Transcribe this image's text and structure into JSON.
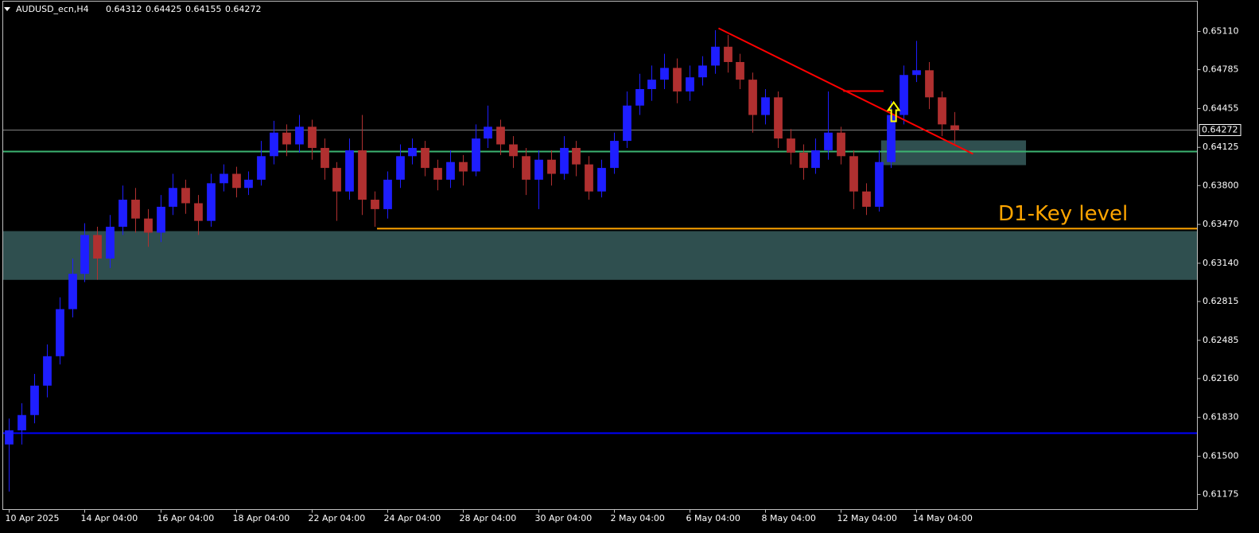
{
  "chart_data": {
    "type": "candlestick",
    "symbol": "AUDUSD_ecn,H4",
    "colors": {
      "up": "#1e1eff",
      "down": "#b03030",
      "background": "#000000",
      "axis": "#c0c0c0",
      "bid_line": "#808080"
    },
    "xlim": [
      -0.5,
      94.3
    ],
    "ylim": [
      0.61047,
      0.65367
    ],
    "yticks": [
      {
        "value": 0.6511,
        "label": "0.65110"
      },
      {
        "value": 0.64785,
        "label": "0.64785"
      },
      {
        "value": 0.64455,
        "label": "0.64455"
      },
      {
        "value": 0.64125,
        "label": "0.64125"
      },
      {
        "value": 0.638,
        "label": "0.63800"
      },
      {
        "value": 0.6347,
        "label": "0.63470"
      },
      {
        "value": 0.6314,
        "label": "0.63140"
      },
      {
        "value": 0.62815,
        "label": "0.62815"
      },
      {
        "value": 0.62485,
        "label": "0.62485"
      },
      {
        "value": 0.6216,
        "label": "0.62160"
      },
      {
        "value": 0.6183,
        "label": "0.61830"
      },
      {
        "value": 0.615,
        "label": "0.61500"
      },
      {
        "value": 0.61175,
        "label": "0.61175"
      }
    ],
    "xticks": [
      {
        "value": 0,
        "label": "10 Apr 2025"
      },
      {
        "value": 6,
        "label": "14 Apr 04:00"
      },
      {
        "value": 12,
        "label": "16 Apr 04:00"
      },
      {
        "value": 18,
        "label": "18 Apr 04:00"
      },
      {
        "value": 24,
        "label": "22 Apr 04:00"
      },
      {
        "value": 30,
        "label": "24 Apr 04:00"
      },
      {
        "value": 36,
        "label": "28 Apr 04:00"
      },
      {
        "value": 42,
        "label": "30 Apr 04:00"
      },
      {
        "value": 48,
        "label": "2 May 04:00"
      },
      {
        "value": 54,
        "label": "6 May 04:00"
      },
      {
        "value": 60,
        "label": "8 May 04:00"
      },
      {
        "value": 66,
        "label": "12 May 04:00"
      },
      {
        "value": 72,
        "label": "14 May 04:00"
      }
    ],
    "ohlc": [
      [
        0.616,
        0.6182,
        0.612,
        0.6172
      ],
      [
        0.6172,
        0.6195,
        0.616,
        0.6185
      ],
      [
        0.6185,
        0.622,
        0.6178,
        0.621
      ],
      [
        0.621,
        0.6245,
        0.62,
        0.6235
      ],
      [
        0.6235,
        0.6285,
        0.6228,
        0.6275
      ],
      [
        0.6275,
        0.6318,
        0.6268,
        0.6305
      ],
      [
        0.6305,
        0.6348,
        0.6298,
        0.6338
      ],
      [
        0.6338,
        0.6345,
        0.63,
        0.6318
      ],
      [
        0.6318,
        0.6355,
        0.631,
        0.6345
      ],
      [
        0.6345,
        0.638,
        0.6338,
        0.6368
      ],
      [
        0.6368,
        0.6378,
        0.634,
        0.6352
      ],
      [
        0.6352,
        0.636,
        0.6328,
        0.634
      ],
      [
        0.634,
        0.6372,
        0.6332,
        0.6362
      ],
      [
        0.6362,
        0.639,
        0.6355,
        0.6378
      ],
      [
        0.6378,
        0.6385,
        0.6356,
        0.6365
      ],
      [
        0.6365,
        0.6372,
        0.6338,
        0.635
      ],
      [
        0.635,
        0.639,
        0.6345,
        0.6382
      ],
      [
        0.6382,
        0.6398,
        0.6375,
        0.639
      ],
      [
        0.639,
        0.6396,
        0.637,
        0.6378
      ],
      [
        0.6378,
        0.6392,
        0.6372,
        0.6385
      ],
      [
        0.6385,
        0.6418,
        0.638,
        0.6405
      ],
      [
        0.6405,
        0.6435,
        0.6398,
        0.6425
      ],
      [
        0.6425,
        0.6432,
        0.6405,
        0.6415
      ],
      [
        0.6415,
        0.644,
        0.6408,
        0.643
      ],
      [
        0.643,
        0.6436,
        0.6402,
        0.6412
      ],
      [
        0.6412,
        0.642,
        0.6385,
        0.6395
      ],
      [
        0.6395,
        0.64,
        0.635,
        0.6375
      ],
      [
        0.6375,
        0.642,
        0.6368,
        0.641
      ],
      [
        0.641,
        0.644,
        0.6355,
        0.6368
      ],
      [
        0.6368,
        0.6375,
        0.6345,
        0.636
      ],
      [
        0.636,
        0.6392,
        0.6352,
        0.6385
      ],
      [
        0.6385,
        0.6415,
        0.6378,
        0.6405
      ],
      [
        0.6405,
        0.642,
        0.6398,
        0.6412
      ],
      [
        0.6412,
        0.6418,
        0.6388,
        0.6395
      ],
      [
        0.6395,
        0.6402,
        0.6376,
        0.6385
      ],
      [
        0.6385,
        0.641,
        0.6378,
        0.64
      ],
      [
        0.64,
        0.6406,
        0.638,
        0.6392
      ],
      [
        0.6392,
        0.6432,
        0.6388,
        0.642
      ],
      [
        0.642,
        0.6448,
        0.6412,
        0.643
      ],
      [
        0.643,
        0.6436,
        0.6406,
        0.6415
      ],
      [
        0.6415,
        0.6422,
        0.6395,
        0.6405
      ],
      [
        0.6405,
        0.6412,
        0.6372,
        0.6385
      ],
      [
        0.6385,
        0.641,
        0.636,
        0.6402
      ],
      [
        0.6402,
        0.641,
        0.638,
        0.639
      ],
      [
        0.639,
        0.6422,
        0.6385,
        0.6412
      ],
      [
        0.6412,
        0.6418,
        0.6388,
        0.6398
      ],
      [
        0.6398,
        0.6405,
        0.6368,
        0.6375
      ],
      [
        0.6375,
        0.6402,
        0.637,
        0.6395
      ],
      [
        0.6395,
        0.6425,
        0.639,
        0.6418
      ],
      [
        0.6418,
        0.646,
        0.6412,
        0.6448
      ],
      [
        0.6448,
        0.6475,
        0.644,
        0.6462
      ],
      [
        0.6462,
        0.6482,
        0.6452,
        0.647
      ],
      [
        0.647,
        0.6492,
        0.6462,
        0.648
      ],
      [
        0.648,
        0.6488,
        0.645,
        0.646
      ],
      [
        0.646,
        0.6482,
        0.6452,
        0.6472
      ],
      [
        0.6472,
        0.649,
        0.6465,
        0.6482
      ],
      [
        0.6482,
        0.6512,
        0.6475,
        0.6498
      ],
      [
        0.6498,
        0.6508,
        0.6476,
        0.6485
      ],
      [
        0.6485,
        0.6492,
        0.6462,
        0.647
      ],
      [
        0.647,
        0.6476,
        0.6425,
        0.644
      ],
      [
        0.644,
        0.6462,
        0.6432,
        0.6455
      ],
      [
        0.6455,
        0.646,
        0.6412,
        0.642
      ],
      [
        0.642,
        0.6428,
        0.6398,
        0.6408
      ],
      [
        0.6408,
        0.6415,
        0.6385,
        0.6395
      ],
      [
        0.6395,
        0.642,
        0.639,
        0.641
      ],
      [
        0.641,
        0.646,
        0.6402,
        0.6425
      ],
      [
        0.6425,
        0.643,
        0.6398,
        0.6405
      ],
      [
        0.6405,
        0.641,
        0.636,
        0.6375
      ],
      [
        0.6375,
        0.6382,
        0.6355,
        0.6362
      ],
      [
        0.6362,
        0.641,
        0.6358,
        0.64
      ],
      [
        0.64,
        0.6452,
        0.6395,
        0.644
      ],
      [
        0.644,
        0.6482,
        0.6432,
        0.6474
      ],
      [
        0.6474,
        0.6503,
        0.6468,
        0.6478
      ],
      [
        0.6478,
        0.6485,
        0.6445,
        0.6455
      ],
      [
        0.6455,
        0.646,
        0.6422,
        0.6432
      ],
      [
        0.64312,
        0.64425,
        0.64155,
        0.64272
      ]
    ],
    "zones": [
      {
        "y": [
          0.62999,
          0.63413
        ],
        "color": "#2f4f4f"
      },
      {
        "x": [
          69.2,
          80.7
        ],
        "y": [
          0.63974,
          0.64184
        ],
        "color": "#2f4f4f"
      }
    ],
    "hlines": [
      {
        "value": 0.64089,
        "color": "#3cb371"
      },
      {
        "value": 0.61696,
        "color": "#0000ff"
      },
      {
        "value": 0.63434,
        "from": 29.2,
        "color": "#ffa500"
      }
    ],
    "trendlines": [
      {
        "points": [
          [
            56.3,
            0.65137
          ],
          [
            76.5,
            0.64069
          ]
        ],
        "color": "#ff0000"
      },
      {
        "points": [
          [
            66.2,
            0.64603
          ],
          [
            69.4,
            0.64603
          ]
        ],
        "color": "#ff0000"
      }
    ],
    "arrows": [
      {
        "x": 70.2,
        "y": 0.64508,
        "color": "#ffff00"
      }
    ],
    "key_label": "D1-Key level",
    "key_label_color": "#ffa500"
  }
}
